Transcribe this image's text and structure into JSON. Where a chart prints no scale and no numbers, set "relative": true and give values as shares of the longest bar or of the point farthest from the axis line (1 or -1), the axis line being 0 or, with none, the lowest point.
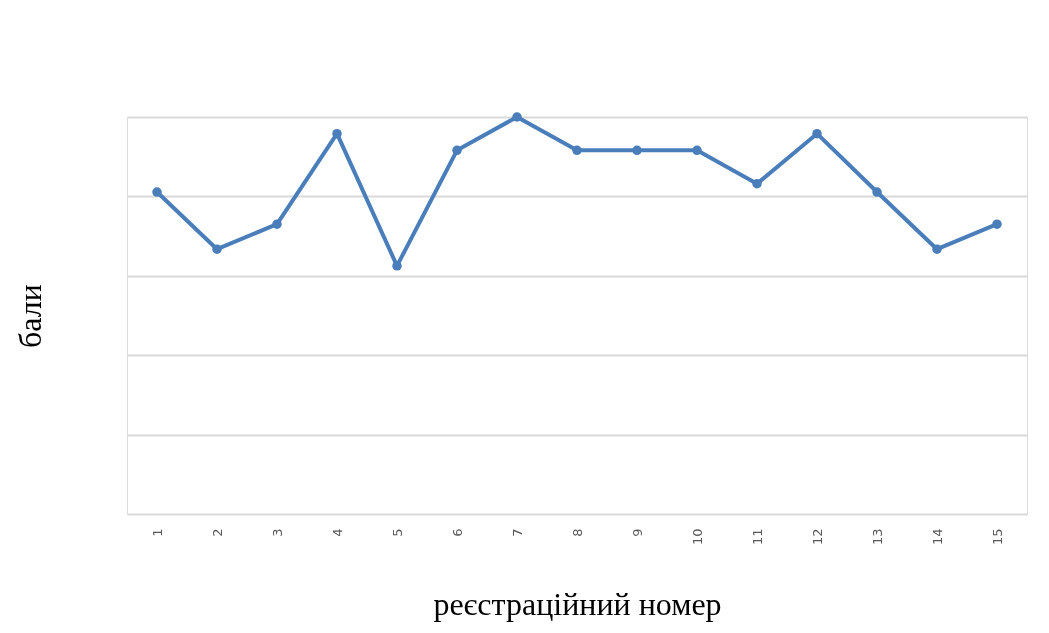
{
  "chart_data": {
    "type": "line",
    "xlabel": "реєстраційний номер",
    "ylabel": "бали",
    "relative": true,
    "grid": "y",
    "marker": "circle",
    "line_style": "solid",
    "legend": false,
    "categories": [
      "1",
      "2",
      "3",
      "4",
      "5",
      "6",
      "7",
      "8",
      "9",
      "10",
      "11",
      "12",
      "13",
      "14",
      "15"
    ],
    "series": [
      {
        "color": "#4a7ebb",
        "values": [
          0.811,
          0.667,
          0.73,
          0.958,
          0.625,
          0.916,
          1,
          0.916,
          0.916,
          0.916,
          0.832,
          0.958,
          0.811,
          0.667,
          0.73
        ]
      }
    ]
  }
}
